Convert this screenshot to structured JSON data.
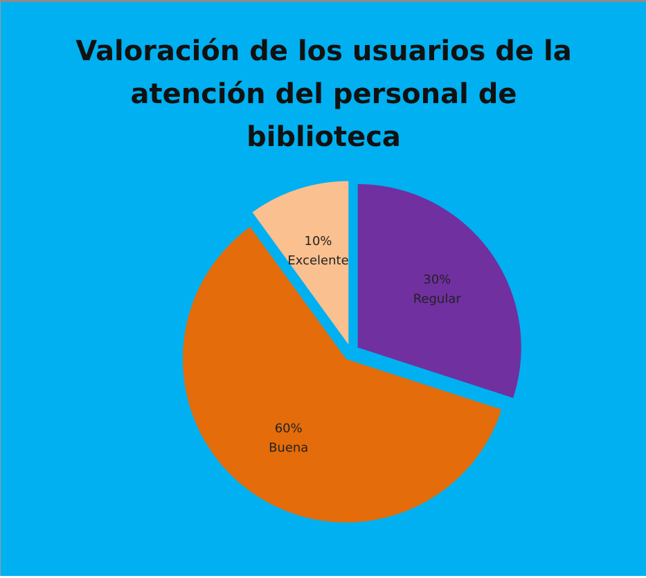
{
  "chart_data": {
    "type": "pie",
    "title": "Valoración de los usuarios de la atención del personal de biblioteca",
    "categories": [
      "Regular",
      "Buena",
      "Excelente"
    ],
    "values": [
      30,
      60,
      10
    ],
    "value_labels": [
      "30%",
      "60%",
      "10%"
    ],
    "colors": [
      "#7030a0",
      "#e46c0a",
      "#fac090"
    ]
  }
}
